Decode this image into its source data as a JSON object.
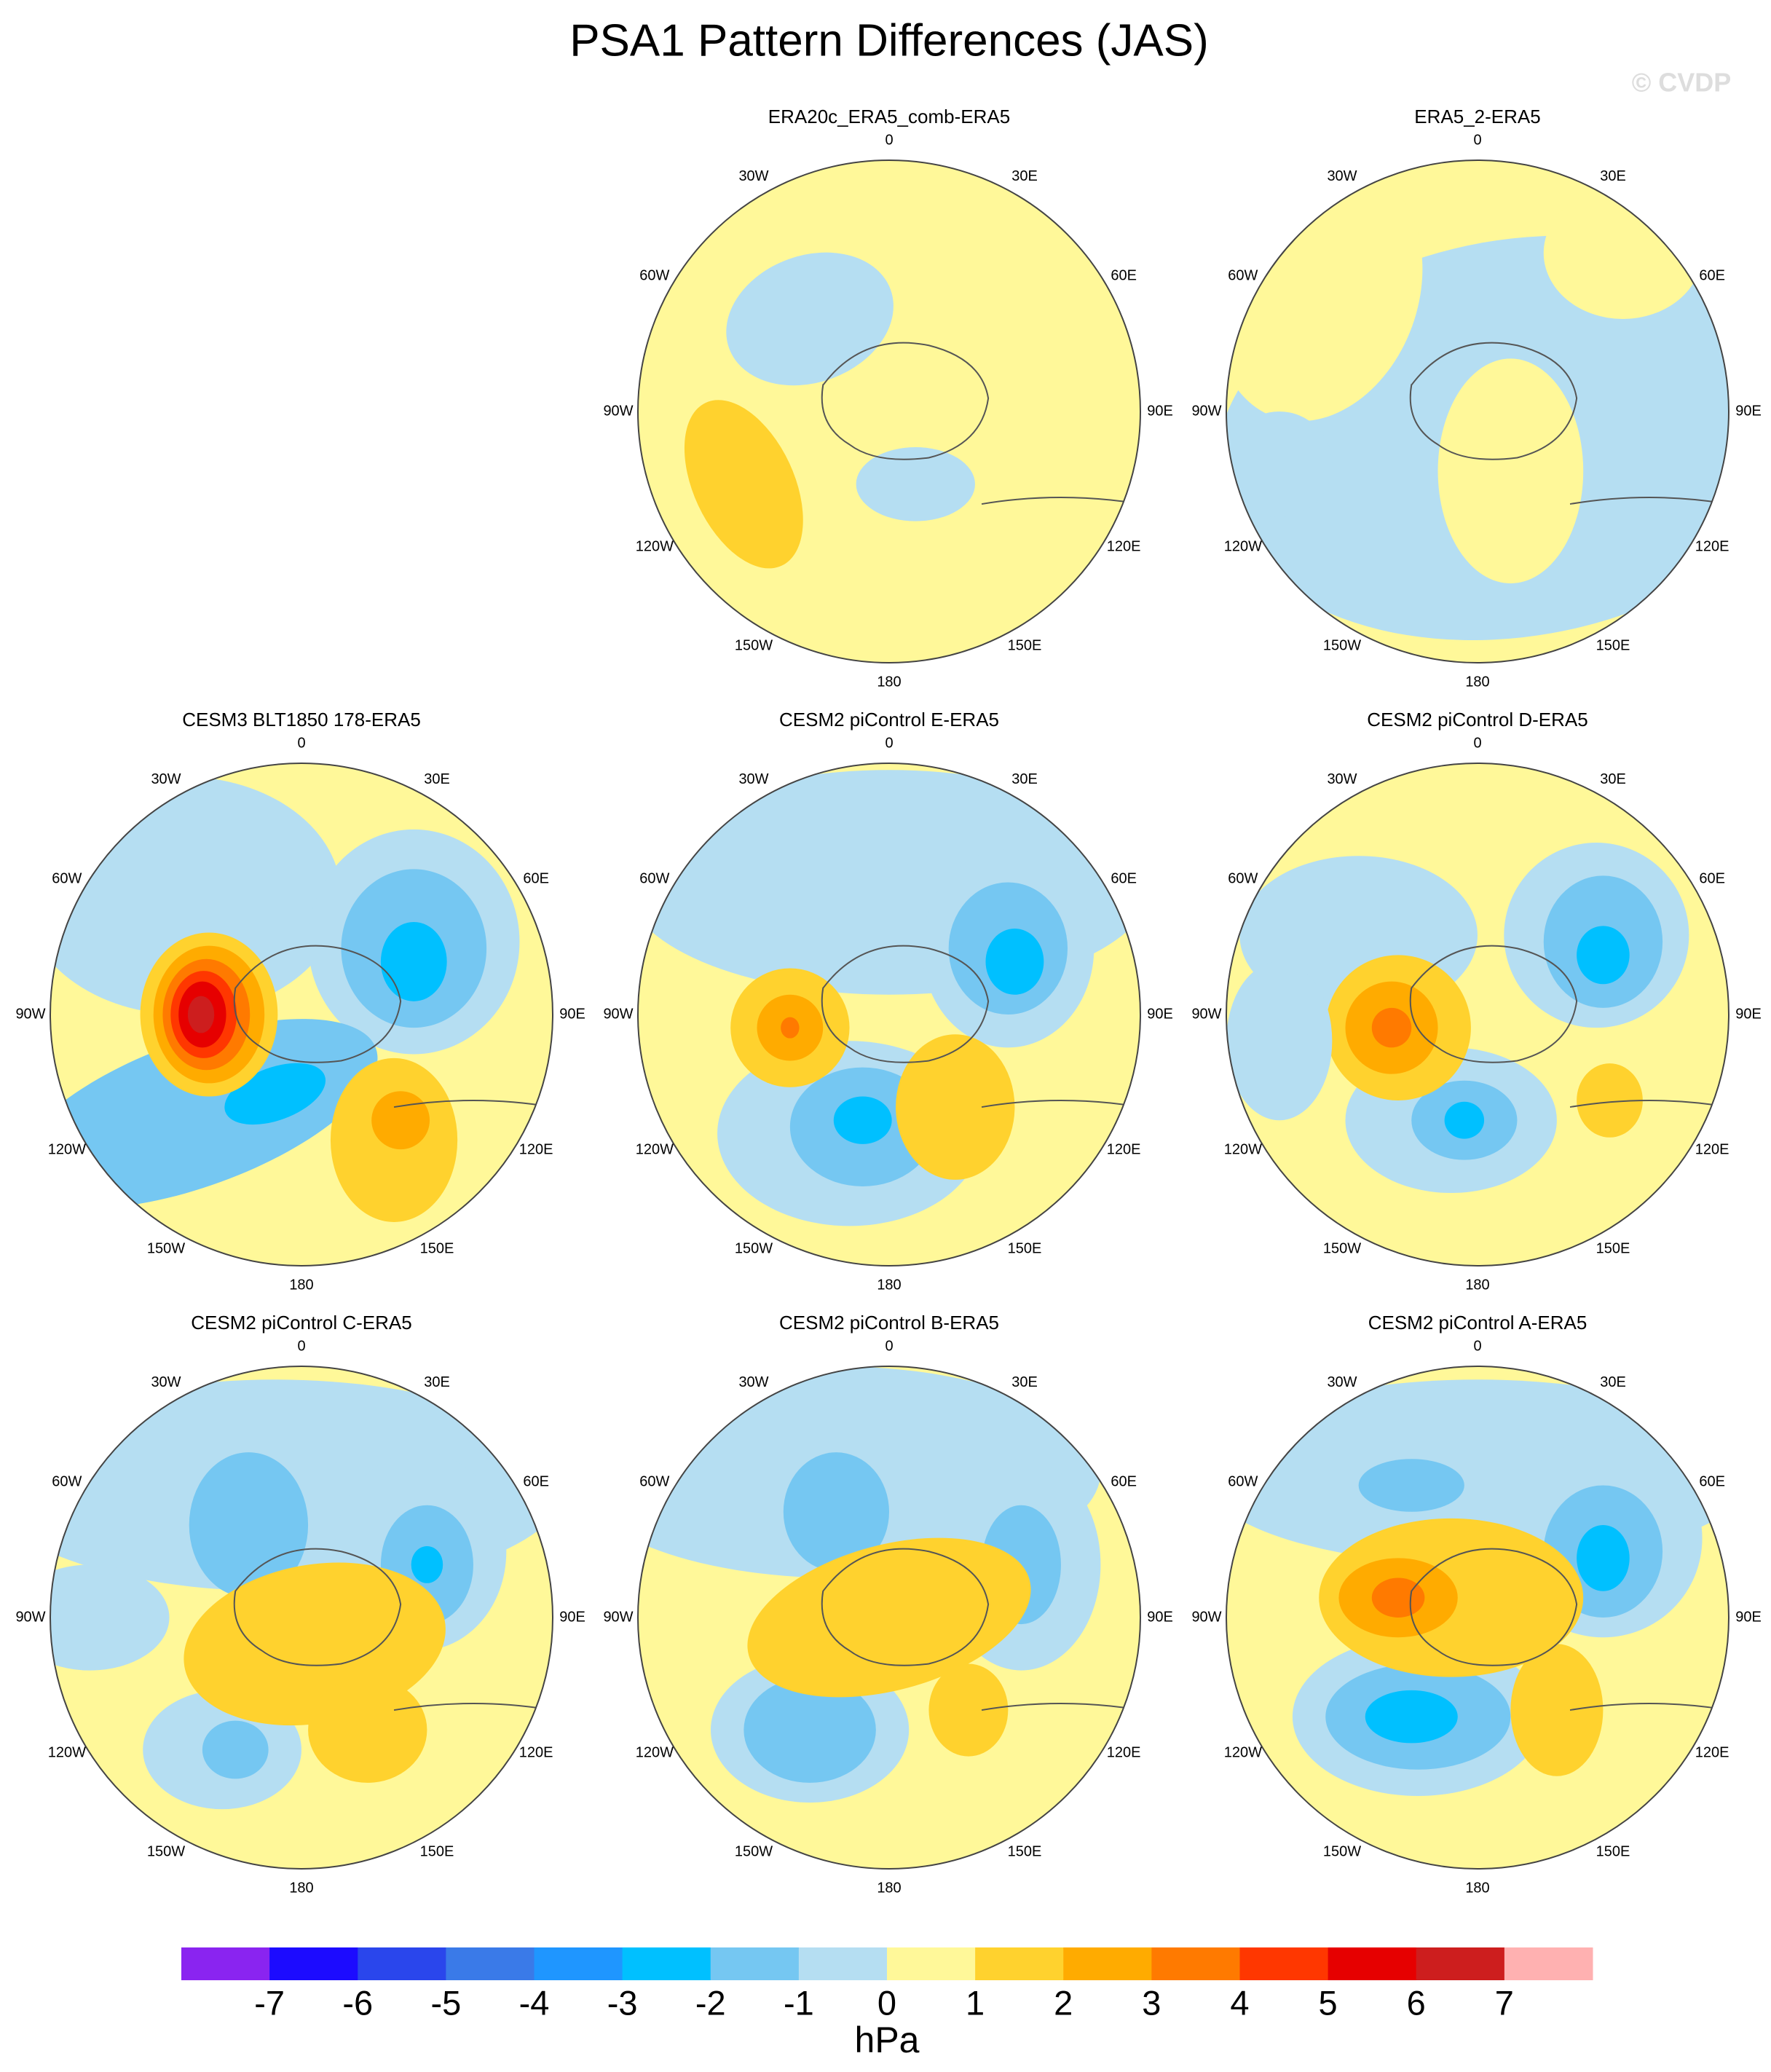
{
  "title": "PSA1 Pattern Differences (JAS)",
  "watermark": "© CVDP",
  "panels": [
    {
      "title": "ERA20c_ERA5_comb-ERA5"
    },
    {
      "title": "ERA5_2-ERA5"
    },
    {
      "title": "CESM3 BLT1850 178-ERA5"
    },
    {
      "title": "CESM2 piControl E-ERA5"
    },
    {
      "title": "CESM2 piControl D-ERA5"
    },
    {
      "title": "CESM2 piControl C-ERA5"
    },
    {
      "title": "CESM2 piControl B-ERA5"
    },
    {
      "title": "CESM2 piControl A-ERA5"
    }
  ],
  "lon_labels": [
    "0",
    "30E",
    "60E",
    "90E",
    "120E",
    "150E",
    "180",
    "150W",
    "120W",
    "90W",
    "60W",
    "30W"
  ],
  "colorbar": {
    "levels": [
      -7,
      -6,
      -5,
      -4,
      -3,
      -2,
      -1,
      0,
      1,
      2,
      3,
      4,
      5,
      6,
      7
    ],
    "colors": [
      "#8a24f0",
      "#1c0bff",
      "#2a46ec",
      "#3a7ae8",
      "#1f96ff",
      "#00c0ff",
      "#75c7f2",
      "#b5def2",
      "#fff899",
      "#ffd22e",
      "#ffab00",
      "#ff7a00",
      "#ff3700",
      "#e60000",
      "#cd1e1e",
      "#ffb1b1"
    ],
    "unit": "hPa"
  }
}
